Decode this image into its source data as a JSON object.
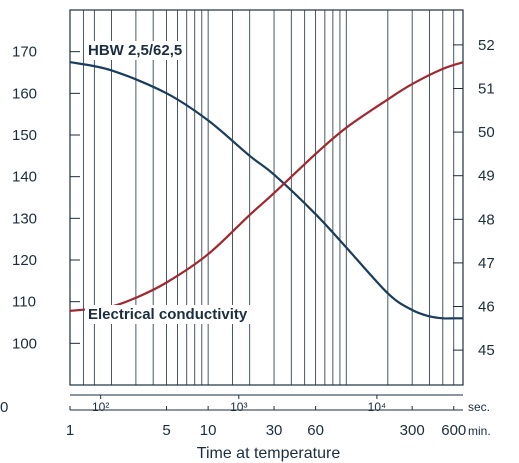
{
  "chart_data": {
    "type": "line",
    "x_axis": {
      "label": "Time at temperature",
      "scale": "log",
      "unit_sec": "sec.",
      "unit_min": "min.",
      "min_ticks": [
        {
          "value": 1,
          "label": "1"
        },
        {
          "value": 5,
          "label": "5"
        },
        {
          "value": 10,
          "label": "10"
        },
        {
          "value": 30,
          "label": "30"
        },
        {
          "value": 60,
          "label": "60"
        },
        {
          "value": 300,
          "label": "300"
        },
        {
          "value": 600,
          "label": "600"
        }
      ],
      "sec_ticks": [
        {
          "value": 100,
          "label": "10²"
        },
        {
          "value": 1000,
          "label": "10³"
        },
        {
          "value": 10000,
          "label": "10⁴"
        }
      ],
      "sec_origin_label": "0",
      "range_min": [
        1,
        700
      ]
    },
    "y_left": {
      "range": [
        90,
        180
      ],
      "ticks": [
        100,
        110,
        120,
        130,
        140,
        150,
        160,
        170
      ]
    },
    "y_right": {
      "range": [
        44.2,
        52.8
      ],
      "ticks": [
        45,
        46,
        47,
        48,
        49,
        50,
        51,
        52
      ]
    },
    "grid": {
      "vertical_min": [
        1,
        1.25,
        1.5,
        2,
        3,
        4,
        5,
        6,
        7,
        8,
        9,
        10,
        15,
        20,
        30,
        40,
        50,
        60,
        70,
        80,
        90,
        100,
        200,
        300,
        400,
        500,
        600
      ]
    },
    "series": [
      {
        "name": "HBW 2,5/62,5",
        "axis": "left",
        "color": "#1a3d5e",
        "x": [
          1,
          2,
          5,
          10,
          20,
          30,
          60,
          100,
          200,
          300,
          400,
          500,
          600,
          700
        ],
        "y": [
          167.5,
          165.5,
          160,
          153.5,
          145,
          140.5,
          131,
          123,
          112,
          108,
          106.5,
          106,
          106,
          106
        ]
      },
      {
        "name": "Electrical conductivity",
        "axis": "right",
        "color": "#a0282e",
        "x": [
          1,
          1.5,
          2,
          3,
          5,
          10,
          20,
          30,
          60,
          100,
          200,
          300,
          500,
          700
        ],
        "y": [
          45.9,
          45.95,
          46.0,
          46.2,
          46.55,
          47.2,
          48.1,
          48.6,
          49.5,
          50.1,
          50.75,
          51.1,
          51.45,
          51.6
        ]
      }
    ],
    "annotations": [
      {
        "text": "HBW 2,5/62,5",
        "series": 0
      },
      {
        "text": "Electrical conductivity",
        "series": 1
      }
    ]
  }
}
